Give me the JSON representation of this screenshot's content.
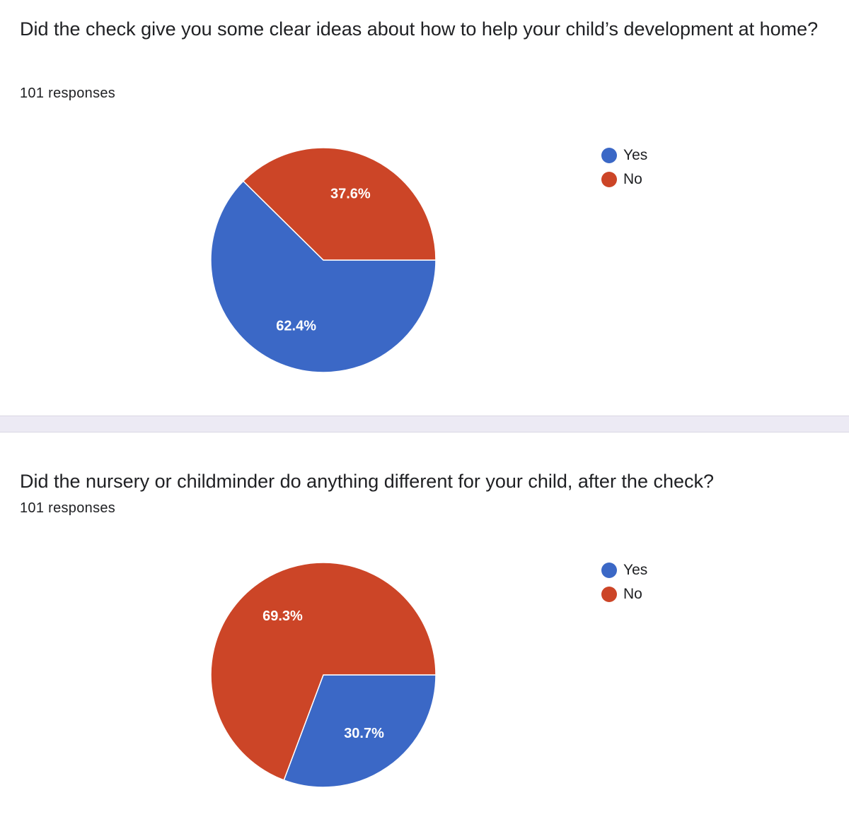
{
  "colors": {
    "yes": "#3b68c6",
    "no": "#cc4527"
  },
  "chart_data": [
    {
      "type": "pie",
      "title": "Did the check give you some clear ideas about how to help your child’s development at home?",
      "responses_text": "101 responses",
      "categories": [
        "Yes",
        "No"
      ],
      "values": [
        62.4,
        37.6
      ],
      "labels": [
        "62.4%",
        "37.6%"
      ],
      "colors": [
        "#3b68c6",
        "#cc4527"
      ],
      "legend": "top-right"
    },
    {
      "type": "pie",
      "title": "Did the nursery or childminder do anything different for your child, after the check?",
      "responses_text": "101 responses",
      "categories": [
        "Yes",
        "No"
      ],
      "values": [
        30.7,
        69.3
      ],
      "labels": [
        "30.7%",
        "69.3%"
      ],
      "colors": [
        "#3b68c6",
        "#cc4527"
      ],
      "legend": "top-right"
    }
  ]
}
